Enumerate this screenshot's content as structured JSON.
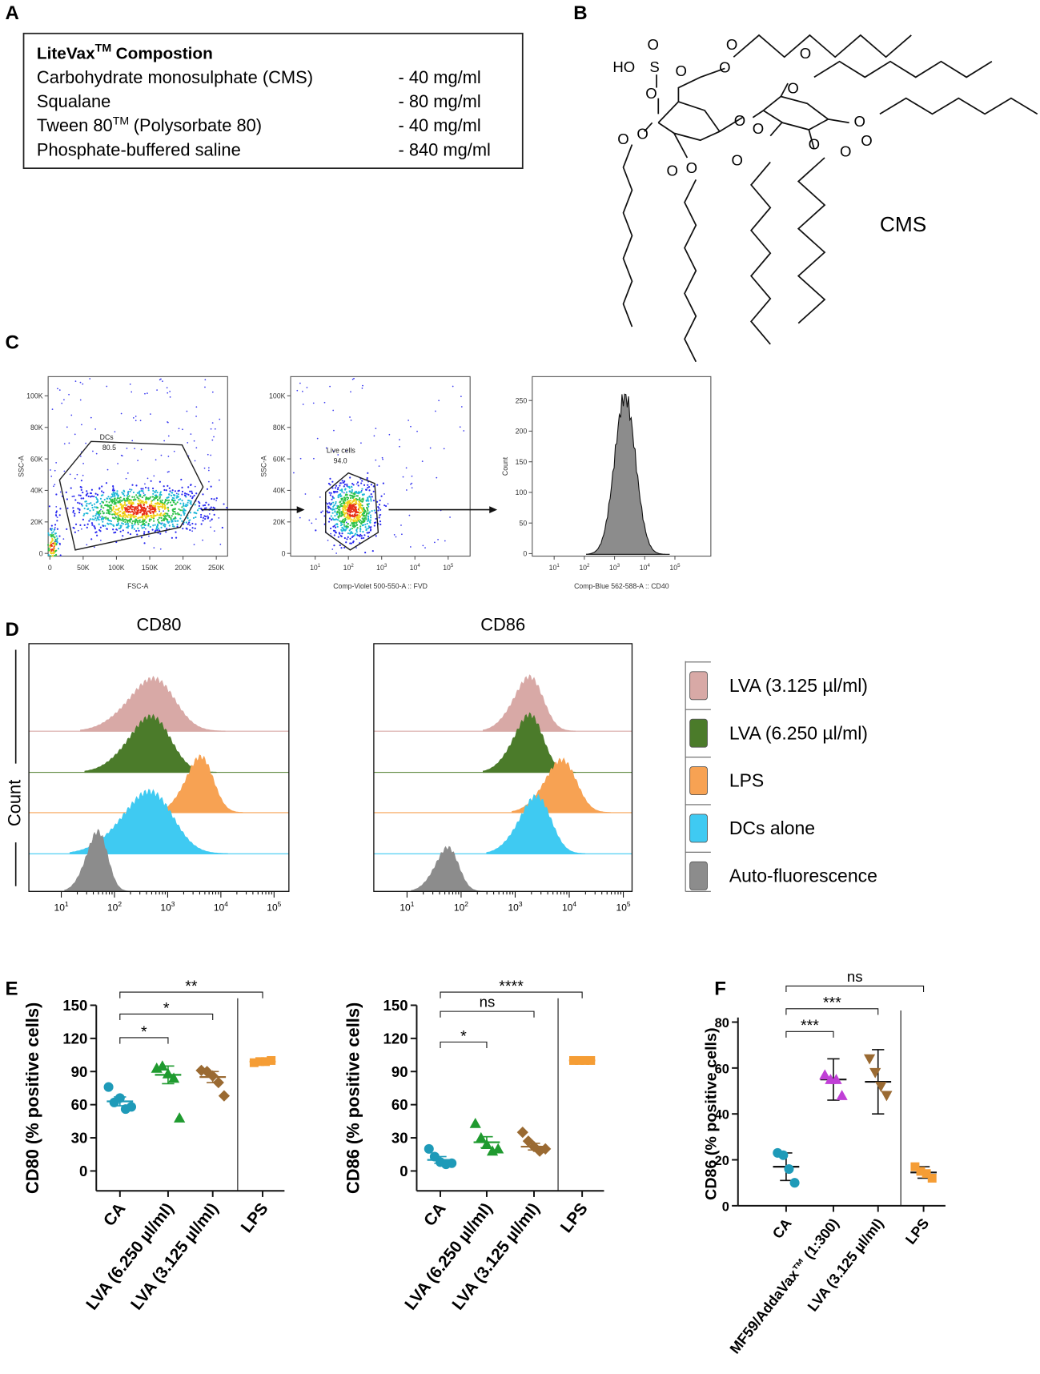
{
  "panel_labels": {
    "a": "A",
    "b": "B",
    "c": "C",
    "d": "D",
    "e": "E",
    "f": "F"
  },
  "composition": {
    "title": "LiteVax",
    "title_sup": "TM",
    "title_rest": "Compostion",
    "rows": [
      {
        "name": "Carbohydrate monosulphate (CMS)",
        "amount": "- 40 mg/ml"
      },
      {
        "name": "Squalane",
        "amount": "- 80 mg/ml"
      },
      {
        "name": "Tween 80",
        "name_sup": "TM",
        "name_rest": "(Polysorbate 80)",
        "amount": "- 40 mg/ml"
      },
      {
        "name": "Phosphate-buffered saline",
        "amount": "- 840 mg/ml"
      }
    ]
  },
  "structure": {
    "name": "CMS",
    "ho": "HO",
    "s": "S",
    "o": "O"
  },
  "flow": [
    {
      "xlabel": "FSC-A",
      "ylabel": "SSC-A",
      "gate": {
        "name": "DCs",
        "value": "80.5"
      },
      "xlog": false,
      "xlim": [
        -2600,
        267000
      ],
      "ylim": [
        -1700,
        112200
      ],
      "xticks": [
        0,
        {
          "value": 50000,
          "label": "50K"
        },
        {
          "value": 100000,
          "label": "100K"
        },
        {
          "value": 150000,
          "label": "150K"
        },
        {
          "value": 200000,
          "label": "200K"
        },
        {
          "value": 250000,
          "label": "250K"
        }
      ],
      "yticks": [
        0,
        {
          "value": 20000,
          "label": "20K"
        },
        {
          "value": 40000,
          "label": "40K"
        },
        {
          "value": 60000,
          "label": "60K"
        },
        {
          "value": 80000,
          "label": "80K"
        },
        {
          "value": 100000,
          "label": "100K"
        }
      ]
    },
    {
      "xlabel": "Comp-Violet 500-550-A :: FVD",
      "ylabel": "SSC-A",
      "gate": {
        "name": "Live cells",
        "value": "94.0"
      },
      "xlog": true,
      "xlim": [
        1.83,
        457000
      ],
      "ylim": [
        -1700,
        112200
      ],
      "xticks": [
        {
          "value": 10,
          "label": "10",
          "sup": "1"
        },
        {
          "value": 100,
          "label": "10",
          "sup": "2"
        },
        {
          "value": 1000,
          "label": "10",
          "sup": "3"
        },
        {
          "value": 10000,
          "label": "10",
          "sup": "4"
        },
        {
          "value": 100000,
          "label": "10",
          "sup": "5"
        }
      ],
      "yticks": [
        0,
        {
          "value": 20000,
          "label": "20K"
        },
        {
          "value": 40000,
          "label": "40K"
        },
        {
          "value": 60000,
          "label": "60K"
        },
        {
          "value": 80000,
          "label": "80K"
        },
        {
          "value": 100000,
          "label": "100K"
        }
      ]
    },
    {
      "xlabel": "Comp-Blue 562-588-A :: CD40",
      "ylabel": "Count",
      "xlog": true,
      "xlim": [
        1.88,
        1550000
      ],
      "ylim": [
        -4,
        289
      ],
      "xticks": [
        {
          "value": 10,
          "label": "10",
          "sup": "1"
        },
        {
          "value": 100,
          "label": "10",
          "sup": "2"
        },
        {
          "value": 1000,
          "label": "10",
          "sup": "3"
        },
        {
          "value": 10000,
          "label": "10",
          "sup": "4"
        },
        {
          "value": 100000,
          "label": "10",
          "sup": "5"
        }
      ],
      "yticks": [
        0,
        50,
        100,
        150,
        200,
        250
      ]
    }
  ],
  "histograms": {
    "titles": [
      "CD80",
      "CD86"
    ],
    "ylabel": "Count",
    "xlims": [
      [
        2.46,
        190000
      ],
      [
        2.43,
        145000
      ]
    ],
    "xticks": [
      {
        "value": 10,
        "label": "10",
        "sup": "1"
      },
      {
        "value": 100,
        "label": "10",
        "sup": "2"
      },
      {
        "value": 1000,
        "label": "10",
        "sup": "3"
      },
      {
        "value": 10000,
        "label": "10",
        "sup": "4"
      },
      {
        "value": 100000,
        "label": "10",
        "sup": "5"
      }
    ],
    "legend": [
      {
        "name": "LVA (3.125 µl/ml)",
        "color": "#d8a9a6"
      },
      {
        "name": "LVA (6.250 µl/ml)",
        "color": "#4b7b2a"
      },
      {
        "name": "LPS",
        "color": "#f7a253"
      },
      {
        "name": "DCs alone",
        "color": "#3fcaf2"
      },
      {
        "name": "Auto-fluorescence",
        "color": "#8c8c8c"
      }
    ]
  },
  "chart_data": [
    {
      "type": "dot",
      "ylabel": "CD80 (% positive cells)",
      "ylim": [
        -18,
        150
      ],
      "yticks": [
        0,
        30,
        60,
        90,
        120,
        150
      ],
      "series": [
        {
          "name": "CA",
          "color": "#1e9ab8",
          "marker": "circle",
          "values": [
            76,
            62,
            66,
            56,
            58
          ],
          "mean": 63,
          "error": 4
        },
        {
          "name": "LVA (6.250 µl/ml)",
          "color": "#1f9a2f",
          "marker": "triangle",
          "values": [
            93,
            95,
            88,
            84,
            48
          ],
          "mean": 87,
          "error": 8
        },
        {
          "name": "LVA (3.125 µl/ml)",
          "color": "#9a6a32",
          "marker": "diamond",
          "values": [
            91,
            90,
            86,
            80,
            68
          ],
          "mean": 85,
          "error": 5
        },
        {
          "name": "LPS",
          "color": "#f59d35",
          "marker": "square",
          "values": [
            98,
            99,
            99,
            100
          ],
          "mean": 99,
          "error": 0.5
        }
      ],
      "comparisons": [
        {
          "pair": [
            0,
            1
          ],
          "label": "*"
        },
        {
          "pair": [
            0,
            2
          ],
          "label": "*"
        },
        {
          "pair": [
            0,
            3
          ],
          "label": "**"
        }
      ]
    },
    {
      "type": "dot",
      "ylabel": "CD86 (% positive cells)",
      "ylim": [
        -18,
        150
      ],
      "yticks": [
        0,
        30,
        60,
        90,
        120,
        150
      ],
      "series": [
        {
          "name": "CA",
          "color": "#1e9ab8",
          "marker": "circle",
          "values": [
            20,
            13,
            8,
            6,
            7
          ],
          "mean": 10,
          "error": 3
        },
        {
          "name": "LVA (6.250 µl/ml)",
          "color": "#1f9a2f",
          "marker": "triangle",
          "values": [
            43,
            30,
            24,
            18,
            20
          ],
          "mean": 26,
          "error": 5
        },
        {
          "name": "LVA (3.125 µl/ml)",
          "color": "#9a6a32",
          "marker": "diamond",
          "values": [
            35,
            27,
            22,
            18,
            20
          ],
          "mean": 22,
          "error": 3
        },
        {
          "name": "LPS",
          "color": "#f59d35",
          "marker": "square",
          "values": [
            100,
            100,
            100,
            100
          ],
          "mean": 100,
          "error": 0.3
        }
      ],
      "comparisons": [
        {
          "pair": [
            0,
            1
          ],
          "label": "*"
        },
        {
          "pair": [
            0,
            2
          ],
          "label": "ns"
        },
        {
          "pair": [
            0,
            3
          ],
          "label": "****"
        }
      ]
    },
    {
      "type": "dot",
      "ylabel": "CD86 (% positive cells)",
      "ylim": [
        0,
        82
      ],
      "yticks": [
        0,
        20,
        40,
        60,
        80
      ],
      "mean_line_color": "#111111",
      "series": [
        {
          "name": "CA",
          "color": "#1e9ab8",
          "marker": "circle",
          "values": [
            23,
            22,
            16,
            10
          ],
          "mean": 17,
          "error": 6
        },
        {
          "name": "MF59/AddaVax™ (1:300)",
          "color": "#c03fd6",
          "marker": "triangle",
          "values": [
            57,
            55,
            55,
            48
          ],
          "mean": 55,
          "error": 9
        },
        {
          "name": "LVA (3.125 µl/ml)",
          "color": "#9a6a32",
          "marker": "triangle-down",
          "values": [
            64,
            58,
            52,
            48
          ],
          "mean": 54,
          "error": 14
        },
        {
          "name": "LPS",
          "color": "#f59d35",
          "marker": "square",
          "values": [
            17,
            15,
            14,
            12
          ],
          "mean": 14.5,
          "error": 2.5
        }
      ],
      "comparisons": [
        {
          "pair": [
            0,
            1
          ],
          "label": "***"
        },
        {
          "pair": [
            0,
            2
          ],
          "label": "***"
        },
        {
          "pair": [
            0,
            3
          ],
          "label": "ns"
        }
      ]
    }
  ]
}
